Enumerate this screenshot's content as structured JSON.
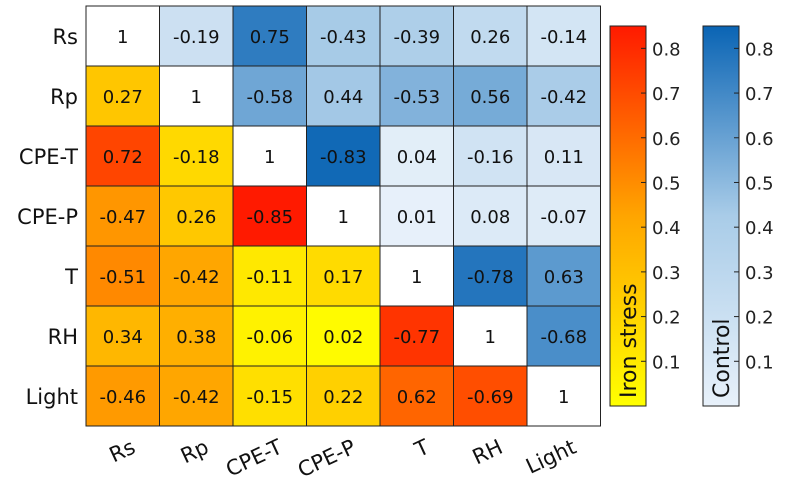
{
  "chart_data": {
    "type": "heatmap",
    "variables": [
      "Rs",
      "Rp",
      "CPE-T",
      "CPE-P",
      "T",
      "RH",
      "Light"
    ],
    "matrix": [
      [
        1,
        -0.19,
        0.75,
        -0.43,
        -0.39,
        0.26,
        -0.14
      ],
      [
        0.27,
        1,
        -0.58,
        0.44,
        -0.53,
        0.56,
        -0.42
      ],
      [
        0.72,
        -0.18,
        1,
        -0.83,
        0.04,
        -0.16,
        0.11
      ],
      [
        -0.47,
        0.26,
        -0.85,
        1,
        0.01,
        0.08,
        -0.07
      ],
      [
        -0.51,
        -0.42,
        -0.11,
        0.17,
        1,
        -0.78,
        0.63
      ],
      [
        0.34,
        0.38,
        -0.06,
        0.02,
        -0.77,
        1,
        -0.68
      ],
      [
        -0.46,
        -0.42,
        -0.15,
        0.22,
        0.62,
        -0.69,
        1
      ]
    ],
    "lower_triangle": "Iron stress",
    "upper_triangle": "Control",
    "diagonal_color": "#ffffff",
    "colorbars": [
      {
        "label": "Iron stress",
        "range": [
          0,
          0.85
        ],
        "ticks": [
          0.1,
          0.2,
          0.3,
          0.4,
          0.5,
          0.6,
          0.7,
          0.8
        ],
        "tick_labels": [
          "0.1",
          "0.2",
          "0.3",
          "0.4",
          "0.5",
          "0.6",
          "0.7",
          "0.8"
        ],
        "colors_low_to_high": [
          "#ffff00",
          "#ffa500",
          "#ff1a00"
        ]
      },
      {
        "label": "Control",
        "range": [
          0,
          0.85
        ],
        "ticks": [
          0.1,
          0.2,
          0.3,
          0.4,
          0.5,
          0.6,
          0.7,
          0.8
        ],
        "tick_labels": [
          "0.1",
          "0.2",
          "0.3",
          "0.4",
          "0.5",
          "0.6",
          "0.7",
          "0.8"
        ],
        "colors_low_to_high": [
          "#e8f1fa",
          "#a9cce8",
          "#0a64b4"
        ]
      }
    ]
  }
}
